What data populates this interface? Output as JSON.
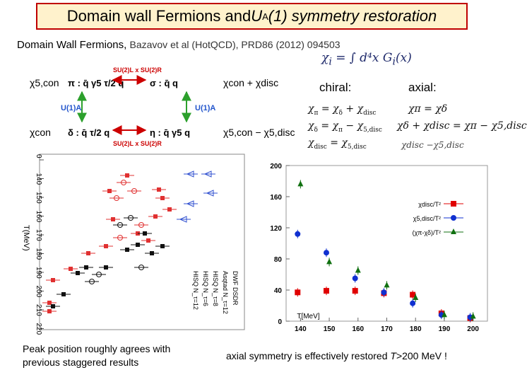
{
  "title": {
    "prefix": "Domain wall Fermions and ",
    "u": "U",
    "sub": "A",
    "suffix": "(1) symmetry restoration"
  },
  "reference": {
    "lead": "Domain Wall Fermions, ",
    "citation": "Bazavov et al (HotQCD), PRD86 (2012) 094503"
  },
  "formula": {
    "lhs": "χ",
    "lhs_sub": "i",
    "rhs": "= ∫ d⁴x G",
    "rhs_sub": "i",
    "rhs_tail": "(x)"
  },
  "columns": {
    "chiral": "chiral:",
    "axial": "axial:"
  },
  "chiral_eqs": [
    {
      "l": "χ",
      "ls": "π",
      "r": "= χ",
      "rs": "δ",
      "t": "+ χ",
      "ts": "disc"
    },
    {
      "l": "χ",
      "ls": "δ",
      "r": "= χ",
      "rs": "π",
      "t": "− χ",
      "ts": "5,disc"
    },
    {
      "l": "χ",
      "ls": "disc",
      "r": "= χ",
      "rs": "5,disc",
      "t": "",
      "ts": ""
    }
  ],
  "axial_eqs": [
    {
      "text": "χπ = χδ"
    },
    {
      "text": "χδ + χdisc = χπ − χ5,disc"
    },
    {
      "text": "χdisc   −χ5,disc"
    }
  ],
  "diagram": {
    "top_left": "χ5,con",
    "top_mid_left": "π : q̄ γ5 τ/2 q",
    "top_mid_right": "σ : q̄ q",
    "top_right": "χcon + χdisc",
    "top_arrow": "SU(2)L x SU(2)R",
    "left_arrow": "U(1)A",
    "right_arrow": "U(1)A",
    "bot_left": "χcon",
    "bot_mid_left": "δ : q̄ τ/2 q",
    "bot_mid_right": "η : q̄ γ5 q",
    "bot_right": "χ5,con − χ5,disc",
    "bot_arrow": "SU(2)L x SU(2)R"
  },
  "left_plot": {
    "axis_title": "T(MeV)",
    "ticks": [
      "0",
      "140",
      "150",
      "160",
      "170",
      "180",
      "190",
      "200",
      "210",
      "220"
    ],
    "legend": [
      "DWF DSDR",
      "Asqtad N_τ=12",
      "HISQ N_τ=8",
      "HISQ N_τ=6",
      "HISQ N_τ=12"
    ]
  },
  "chart_data": {
    "type": "scatter",
    "title": "",
    "xlabel": "T[MeV]",
    "ylabel": "",
    "xlim": [
      135,
      205
    ],
    "ylim": [
      0,
      200
    ],
    "x_ticks": [
      140,
      150,
      160,
      170,
      180,
      190,
      200
    ],
    "y_ticks": [
      0,
      40,
      80,
      120,
      160,
      200
    ],
    "series": [
      {
        "name": "χdisc/T²",
        "color": "#e00000",
        "marker": "square",
        "x": [
          139,
          149,
          159,
          169,
          179,
          189,
          199
        ],
        "y": [
          37,
          39,
          39,
          36,
          34,
          10,
          4
        ]
      },
      {
        "name": "χ5,disc/T²",
        "color": "#1030d0",
        "marker": "circle",
        "x": [
          139,
          149,
          159,
          169,
          179,
          189,
          199
        ],
        "y": [
          112,
          88,
          55,
          37,
          23,
          8,
          5
        ]
      },
      {
        "name": "(χπ-χδ)/T²",
        "color": "#107010",
        "marker": "triangle",
        "x": [
          140,
          150,
          160,
          170,
          180,
          190,
          200
        ],
        "y": [
          176,
          76,
          65,
          46,
          30,
          8,
          6
        ]
      }
    ]
  },
  "captions": {
    "left": [
      "Peak position roughly agrees with",
      "previous staggered results"
    ],
    "right_pre": "axial symmetry is effectively restored ",
    "right_italic": "T",
    "right_post": ">200 MeV !"
  }
}
